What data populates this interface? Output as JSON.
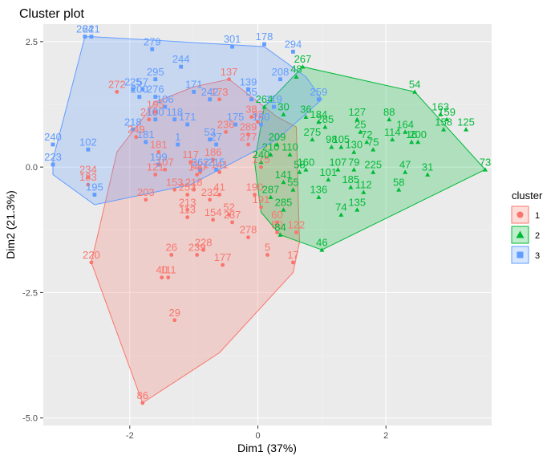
{
  "chart_data": {
    "type": "scatter",
    "title": "Cluster plot",
    "xlabel": "Dim1 (37%)",
    "ylabel": "Dim2 (21.3%)",
    "xlim": [
      -3.35,
      3.65
    ],
    "ylim": [
      -5.15,
      2.85
    ],
    "x_ticks": [
      -2,
      0,
      2
    ],
    "y_ticks": [
      2.5,
      0.0,
      -2.5,
      -5.0
    ],
    "x_tick_labels": [
      "-2",
      "0",
      "2"
    ],
    "y_tick_labels": [
      "2.5",
      "0.0",
      "-2.5",
      "-5.0"
    ],
    "grid": true,
    "legend": {
      "title": "cluster",
      "position": "right",
      "entries": [
        "1",
        "2",
        "3"
      ]
    },
    "colors": {
      "1": "#F8766D",
      "2": "#00BA38",
      "3": "#619CFF"
    },
    "series": [
      {
        "name": "1",
        "marker": "circle",
        "hull": [
          [
            -1.8,
            -4.7
          ],
          [
            -2.6,
            -1.9
          ],
          [
            -2.2,
            0.3
          ],
          [
            -1.6,
            1.3
          ],
          [
            -1.0,
            1.6
          ],
          [
            -0.45,
            1.75
          ],
          [
            0.3,
            1.0
          ],
          [
            0.6,
            0.8
          ],
          [
            0.65,
            -1.5
          ],
          [
            0.55,
            -2.1
          ],
          [
            -0.6,
            -3.7
          ]
        ],
        "points": [
          {
            "x": -1.8,
            "y": -4.7,
            "label": "86"
          },
          {
            "x": -1.3,
            "y": -3.05,
            "label": "29"
          },
          {
            "x": -1.5,
            "y": -2.2,
            "label": "40"
          },
          {
            "x": -1.4,
            "y": -2.2,
            "label": "111"
          },
          {
            "x": -2.6,
            "y": -1.9,
            "label": "220"
          },
          {
            "x": -1.35,
            "y": -1.75,
            "label": "26"
          },
          {
            "x": -0.55,
            "y": -1.95,
            "label": "177"
          },
          {
            "x": -0.85,
            "y": -1.65,
            "label": "228"
          },
          {
            "x": -0.95,
            "y": -1.75,
            "label": "239"
          },
          {
            "x": 0.55,
            "y": -1.9,
            "label": "17"
          },
          {
            "x": 0.15,
            "y": -1.75,
            "label": "5"
          },
          {
            "x": -0.15,
            "y": -1.4,
            "label": "278"
          },
          {
            "x": -0.4,
            "y": -1.1,
            "label": "237"
          },
          {
            "x": -0.45,
            "y": -0.95,
            "label": "52"
          },
          {
            "x": -0.7,
            "y": -1.05,
            "label": "154"
          },
          {
            "x": -1.1,
            "y": -1.0,
            "label": "113"
          },
          {
            "x": -1.1,
            "y": -0.85,
            "label": "213"
          },
          {
            "x": -1.1,
            "y": -0.55,
            "label": "253"
          },
          {
            "x": -1.3,
            "y": -0.45,
            "label": "153"
          },
          {
            "x": -1.75,
            "y": -0.65,
            "label": "203"
          },
          {
            "x": -2.65,
            "y": -0.2,
            "label": "234"
          },
          {
            "x": -2.65,
            "y": -0.35,
            "label": "183"
          },
          {
            "x": -1.6,
            "y": -0.15,
            "label": "121"
          },
          {
            "x": -1.45,
            "y": -0.05,
            "label": "107"
          },
          {
            "x": -1.0,
            "y": -0.45,
            "label": "218"
          },
          {
            "x": -0.6,
            "y": -0.55,
            "label": "41"
          },
          {
            "x": -0.75,
            "y": -0.65,
            "label": "232"
          },
          {
            "x": -0.05,
            "y": -0.55,
            "label": "190"
          },
          {
            "x": 0.05,
            "y": -0.8,
            "label": "191"
          },
          {
            "x": 0.3,
            "y": -1.1,
            "label": "60"
          },
          {
            "x": 0.6,
            "y": -1.3,
            "label": "122"
          },
          {
            "x": 0.3,
            "y": -1.3,
            "label": "50"
          },
          {
            "x": -1.9,
            "y": 0.6,
            "label": "249"
          },
          {
            "x": -1.7,
            "y": 0.95,
            "label": "216"
          },
          {
            "x": -1.6,
            "y": 1.1,
            "label": "195"
          },
          {
            "x": -2.2,
            "y": 1.5,
            "label": "272"
          },
          {
            "x": -0.45,
            "y": 1.75,
            "label": "137"
          },
          {
            "x": -0.6,
            "y": 1.35,
            "label": "173"
          },
          {
            "x": -0.5,
            "y": 0.7,
            "label": "236"
          },
          {
            "x": -0.1,
            "y": 1.0,
            "label": "38"
          },
          {
            "x": 0.0,
            "y": 0.9,
            "label": "92"
          },
          {
            "x": -0.15,
            "y": 0.65,
            "label": "289"
          },
          {
            "x": -0.15,
            "y": 0.45,
            "label": "277"
          },
          {
            "x": 0.05,
            "y": 0.0,
            "label": "175"
          },
          {
            "x": -0.6,
            "y": -0.1,
            "label": "141"
          },
          {
            "x": -0.95,
            "y": -0.15,
            "label": "140"
          },
          {
            "x": -1.05,
            "y": 0.1,
            "label": "117"
          },
          {
            "x": -0.9,
            "y": -0.1,
            "label": "221"
          },
          {
            "x": -0.7,
            "y": 0.15,
            "label": "186"
          },
          {
            "x": -1.55,
            "y": 0.3,
            "label": "181"
          }
        ]
      },
      {
        "name": "2",
        "marker": "triangle",
        "hull": [
          [
            0.1,
            1.2
          ],
          [
            0.7,
            2.0
          ],
          [
            2.45,
            1.5
          ],
          [
            3.55,
            -0.05
          ],
          [
            1.0,
            -1.65
          ],
          [
            0.35,
            -1.35
          ],
          [
            0.05,
            -0.9
          ],
          [
            -0.05,
            0.1
          ]
        ],
        "points": [
          {
            "x": 0.7,
            "y": 2.0,
            "label": "267"
          },
          {
            "x": 0.6,
            "y": 1.8,
            "label": "48"
          },
          {
            "x": 2.45,
            "y": 1.5,
            "label": "54"
          },
          {
            "x": 3.55,
            "y": -0.05,
            "label": "73"
          },
          {
            "x": 3.25,
            "y": 0.75,
            "label": "125"
          },
          {
            "x": 2.95,
            "y": 0.95,
            "label": "159"
          },
          {
            "x": 2.85,
            "y": 1.05,
            "label": "163"
          },
          {
            "x": 2.9,
            "y": 0.75,
            "label": "158"
          },
          {
            "x": 2.05,
            "y": 0.95,
            "label": "88"
          },
          {
            "x": 2.3,
            "y": 0.7,
            "label": "164"
          },
          {
            "x": 2.1,
            "y": 0.55,
            "label": "114"
          },
          {
            "x": 2.5,
            "y": 0.5,
            "label": "200"
          },
          {
            "x": 2.4,
            "y": 0.5,
            "label": "16"
          },
          {
            "x": 1.55,
            "y": 0.95,
            "label": "127"
          },
          {
            "x": 1.6,
            "y": 0.7,
            "label": "25"
          },
          {
            "x": 1.7,
            "y": 0.5,
            "label": "72"
          },
          {
            "x": 1.8,
            "y": 0.35,
            "label": "75"
          },
          {
            "x": 0.95,
            "y": 0.9,
            "label": "184"
          },
          {
            "x": 0.75,
            "y": 1.0,
            "label": "36"
          },
          {
            "x": 0.4,
            "y": 1.05,
            "label": "30"
          },
          {
            "x": 0.1,
            "y": 1.2,
            "label": "264"
          },
          {
            "x": 1.05,
            "y": 0.8,
            "label": "285"
          },
          {
            "x": 0.85,
            "y": 0.55,
            "label": "275"
          },
          {
            "x": 0.3,
            "y": 0.45,
            "label": "209"
          },
          {
            "x": 0.2,
            "y": 0.25,
            "label": "210"
          },
          {
            "x": 1.15,
            "y": 0.4,
            "label": "98"
          },
          {
            "x": 1.3,
            "y": 0.4,
            "label": "105"
          },
          {
            "x": 1.5,
            "y": 0.3,
            "label": "130"
          },
          {
            "x": 1.25,
            "y": -0.05,
            "label": "107"
          },
          {
            "x": 1.5,
            "y": -0.05,
            "label": "79"
          },
          {
            "x": 1.8,
            "y": -0.1,
            "label": "225"
          },
          {
            "x": 2.3,
            "y": -0.1,
            "label": "47"
          },
          {
            "x": 2.65,
            "y": -0.15,
            "label": "31"
          },
          {
            "x": 1.1,
            "y": -0.25,
            "label": "101"
          },
          {
            "x": 1.45,
            "y": -0.4,
            "label": "185"
          },
          {
            "x": 1.65,
            "y": -0.5,
            "label": "112"
          },
          {
            "x": 2.2,
            "y": -0.45,
            "label": "58"
          },
          {
            "x": 0.95,
            "y": -0.6,
            "label": "136"
          },
          {
            "x": 1.3,
            "y": -0.95,
            "label": "74"
          },
          {
            "x": 1.55,
            "y": -0.85,
            "label": "135"
          },
          {
            "x": 1.0,
            "y": -1.65,
            "label": "46"
          },
          {
            "x": 0.35,
            "y": -1.35,
            "label": "84"
          },
          {
            "x": 0.4,
            "y": -0.85,
            "label": "285"
          },
          {
            "x": 0.2,
            "y": -0.6,
            "label": "287"
          },
          {
            "x": 0.55,
            "y": -0.45,
            "label": "55"
          },
          {
            "x": 0.65,
            "y": -0.1,
            "label": "58"
          },
          {
            "x": 0.5,
            "y": 0.25,
            "label": "110"
          },
          {
            "x": 0.75,
            "y": -0.05,
            "label": "160"
          },
          {
            "x": 0.4,
            "y": -0.3,
            "label": "141"
          },
          {
            "x": 0.05,
            "y": 0.1,
            "label": "240"
          }
        ]
      },
      {
        "name": "3",
        "marker": "square",
        "hull": [
          [
            -2.7,
            2.6
          ],
          [
            -2.6,
            2.6
          ],
          [
            0.1,
            2.4
          ],
          [
            0.75,
            1.8
          ],
          [
            1.0,
            1.35
          ],
          [
            0.3,
            0.55
          ],
          [
            -1.05,
            -0.35
          ],
          [
            -2.55,
            -0.75
          ],
          [
            -3.2,
            -0.15
          ],
          [
            -3.2,
            0.15
          ]
        ],
        "points": [
          {
            "x": -2.7,
            "y": 2.6,
            "label": "264"
          },
          {
            "x": -2.6,
            "y": 2.6,
            "label": "221"
          },
          {
            "x": -1.65,
            "y": 2.35,
            "label": "279"
          },
          {
            "x": -0.4,
            "y": 2.4,
            "label": "301"
          },
          {
            "x": 0.1,
            "y": 2.45,
            "label": "178"
          },
          {
            "x": 0.55,
            "y": 2.3,
            "label": "294"
          },
          {
            "x": -1.2,
            "y": 2.0,
            "label": "244"
          },
          {
            "x": -1.6,
            "y": 1.75,
            "label": "295"
          },
          {
            "x": -1.95,
            "y": 1.55,
            "label": "225"
          },
          {
            "x": -1.8,
            "y": 1.55,
            "label": "57"
          },
          {
            "x": -1.85,
            "y": 1.4,
            "label": "200"
          },
          {
            "x": -1.6,
            "y": 1.4,
            "label": "276"
          },
          {
            "x": 0.35,
            "y": 1.75,
            "label": "208"
          },
          {
            "x": -0.15,
            "y": 1.55,
            "label": "139"
          },
          {
            "x": 0.95,
            "y": 1.35,
            "label": "259"
          },
          {
            "x": 0.25,
            "y": 1.2,
            "label": "119"
          },
          {
            "x": -0.1,
            "y": 1.35,
            "label": "55"
          },
          {
            "x": -1.0,
            "y": 1.5,
            "label": "171"
          },
          {
            "x": -0.75,
            "y": 1.35,
            "label": "242"
          },
          {
            "x": -1.45,
            "y": 1.2,
            "label": "106"
          },
          {
            "x": -1.6,
            "y": 0.95,
            "label": "100"
          },
          {
            "x": -1.3,
            "y": 0.95,
            "label": "118"
          },
          {
            "x": -1.1,
            "y": 0.85,
            "label": "171"
          },
          {
            "x": -0.35,
            "y": 0.85,
            "label": "175"
          },
          {
            "x": 0.05,
            "y": 0.85,
            "label": "180"
          },
          {
            "x": -0.75,
            "y": 0.55,
            "label": "53"
          },
          {
            "x": -0.65,
            "y": 0.45,
            "label": "27"
          },
          {
            "x": -1.25,
            "y": 0.45,
            "label": "1"
          },
          {
            "x": -1.95,
            "y": 0.75,
            "label": "218"
          },
          {
            "x": -1.75,
            "y": 0.5,
            "label": "181"
          },
          {
            "x": -2.65,
            "y": 0.35,
            "label": "102"
          },
          {
            "x": -3.2,
            "y": 0.45,
            "label": "240"
          },
          {
            "x": -3.2,
            "y": 0.05,
            "label": "223"
          },
          {
            "x": -2.55,
            "y": -0.55,
            "label": "195"
          },
          {
            "x": -1.55,
            "y": 0.05,
            "label": "199"
          },
          {
            "x": -0.9,
            "y": -0.05,
            "label": "262"
          },
          {
            "x": -0.65,
            "y": -0.05,
            "label": "215"
          }
        ]
      }
    ]
  }
}
